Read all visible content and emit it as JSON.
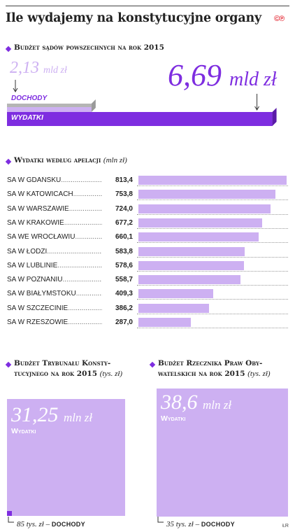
{
  "header": {
    "title": "Ile wydajemy na konstytucyjne organy",
    "brand": "©℗"
  },
  "credit": "ŁR",
  "chart_data": [
    {
      "type": "bar",
      "title": "Budżet sądów powszechnych na rok 2015",
      "categories": [
        "DOCHODY",
        "WYDATKI"
      ],
      "values": [
        2.13,
        6.69
      ],
      "value_labels": {
        "dochody_num": "2,13",
        "dochody_unit": "mld zł",
        "wydatki_num": "6,69",
        "wydatki_unit": "mld zł"
      },
      "xlim": [
        0,
        7.05
      ]
    },
    {
      "type": "bar",
      "title": "Wydatki według apelacji",
      "unit": "(mln zł)",
      "categories": [
        "SA W GDAŃSKU",
        "SA W KATOWICACH",
        "SA W WARSZAWIE",
        "SA W KRAKOWIE",
        "SA WE WROCŁAWIU",
        "SA W ŁODZI",
        "SA W LUBLINIE",
        "SA W POZNANIU",
        "SA W BIAŁYMSTOKU",
        "SA W SZCZECINIE",
        "SA W RZESZOWIE"
      ],
      "values": [
        813.4,
        753.8,
        724.0,
        677.2,
        660.1,
        583.8,
        578.6,
        558.7,
        409.3,
        386.2,
        287.0
      ],
      "value_labels": [
        "813,4",
        "753,8",
        "724,0",
        "677,2",
        "660,1",
        "583,8",
        "578,6",
        "558,7",
        "409,3",
        "386,2",
        "287,0"
      ],
      "xlim": [
        0,
        813.4
      ]
    },
    {
      "type": "bar",
      "title": "Budżet Trybunału Konsty-tucyjnego na rok 2015",
      "unit": "(tys. zł)",
      "categories": [
        "Wydatki",
        "Dochody"
      ],
      "values": [
        31250,
        85
      ],
      "wydatki_num": "31,25",
      "wydatki_unit": "mln zł",
      "wydatki_label": "Wydatki",
      "dochody_num": "85",
      "dochody_unit": "tys. zł",
      "dochody_label": "DOCHODY"
    },
    {
      "type": "bar",
      "title": "Budżet Rzecznika Praw Oby-watelskich na rok 2015",
      "unit": "(tys. zł)",
      "categories": [
        "Wydatki",
        "Dochody"
      ],
      "values": [
        38600,
        35
      ],
      "wydatki_num": "38,6",
      "wydatki_unit": "mln zł",
      "wydatki_label": "Wydatki",
      "dochody_num": "35",
      "dochody_unit": "tys. zł",
      "dochody_label": "DOCHODY"
    }
  ],
  "colors": {
    "accent": "#7e2de0",
    "light": "#cdb0f2",
    "gray": "#b5b5b5"
  }
}
